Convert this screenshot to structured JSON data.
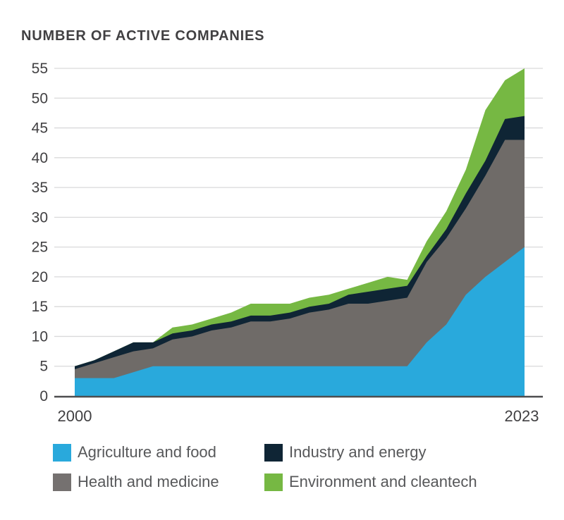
{
  "title": "NUMBER OF ACTIVE COMPANIES",
  "x_axis": {
    "start_label": "2000",
    "end_label": "2023"
  },
  "legend": {
    "items": [
      {
        "label": "Agriculture and food",
        "color": "#29a9dc"
      },
      {
        "label": "Industry and energy",
        "color": "#0f2535"
      },
      {
        "label": "Health and medicine",
        "color": "#757170"
      },
      {
        "label": "Environment and cleantech",
        "color": "#76b843"
      }
    ]
  },
  "chart_data": {
    "type": "area",
    "stacked": true,
    "title": "NUMBER OF ACTIVE COMPANIES",
    "xlabel": "",
    "ylabel": "Number of active companies",
    "x": [
      2000,
      2001,
      2002,
      2003,
      2004,
      2005,
      2006,
      2007,
      2008,
      2009,
      2010,
      2011,
      2012,
      2013,
      2014,
      2015,
      2016,
      2017,
      2018,
      2019,
      2020,
      2021,
      2022,
      2023
    ],
    "x_tick_labels": [
      "2000",
      "2023"
    ],
    "ylim": [
      0,
      55
    ],
    "yticks": [
      0,
      5,
      10,
      15,
      20,
      25,
      30,
      35,
      40,
      45,
      50,
      55
    ],
    "grid": true,
    "legend_position": "bottom",
    "stack_order_note": "series listed bottom to top of the stack",
    "series": [
      {
        "name": "Agriculture and food",
        "color": "#29a9dc",
        "values": [
          3,
          3,
          3,
          4,
          5,
          5,
          5,
          5,
          5,
          5,
          5,
          5,
          5,
          5,
          5,
          5,
          5,
          5,
          9,
          12,
          17,
          20,
          22.5,
          25
        ]
      },
      {
        "name": "Health and medicine",
        "color": "#6f6b68",
        "values": [
          1.5,
          2.5,
          3.5,
          3.5,
          3,
          4.5,
          5,
          6,
          6.5,
          7.5,
          7.5,
          8,
          9,
          9.5,
          10.5,
          10.5,
          11,
          11.5,
          13.5,
          14.5,
          14.5,
          17,
          20.5,
          18
        ]
      },
      {
        "name": "Industry and energy",
        "color": "#0f2535",
        "values": [
          0.5,
          0.5,
          1,
          1.5,
          1,
          1,
          1,
          1,
          1,
          1,
          1,
          1,
          1,
          1,
          1.5,
          2,
          2,
          2,
          1,
          1.5,
          2.5,
          2.5,
          3.5,
          4
        ]
      },
      {
        "name": "Environment and cleantech",
        "color": "#76b843",
        "values": [
          0,
          0,
          0,
          0,
          0,
          1,
          1,
          1,
          1.5,
          2,
          2,
          1.5,
          1.5,
          1.5,
          1,
          1.5,
          2,
          1,
          2.5,
          3,
          4,
          8.5,
          6.5,
          8
        ]
      }
    ],
    "totals": [
      5,
      6,
      7.5,
      9,
      9,
      11.5,
      12,
      13,
      14,
      15.5,
      15.5,
      15.5,
      16.5,
      17,
      18,
      19,
      20,
      19.5,
      26,
      31,
      38,
      48,
      53,
      55
    ]
  }
}
